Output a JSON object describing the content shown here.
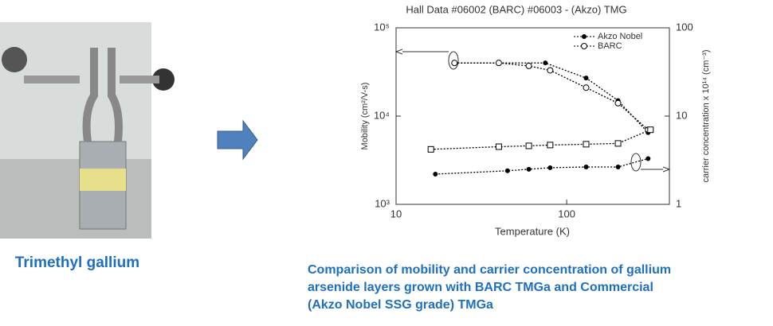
{
  "photo_caption": "Trimethyl gallium",
  "chart_caption": [
    "Comparison of mobility and carrier concentration of gallium",
    "arsenide layers grown with BARC TMGa and Commercial",
    "(Akzo Nobel SSG grade) TMGa"
  ],
  "chart_data": {
    "type": "line",
    "title": "Hall Data #06002 (BARC) #06003 - (Akzo) TMG",
    "x_label": "Temperature (K)",
    "y_label": "Mobility (cm²/V-s)",
    "y2_label": "carrier concentration x 10¹⁴ (cm⁻³)",
    "xscale": "log",
    "yscale": "log",
    "y2scale": "log",
    "xlim": [
      10,
      400
    ],
    "xticks": [
      10,
      100
    ],
    "ylim": [
      1000,
      100000
    ],
    "yticks": [
      {
        "value": 1000,
        "label": "10³"
      },
      {
        "value": 10000,
        "label": "10⁴"
      },
      {
        "value": 100000,
        "label": "10⁵"
      }
    ],
    "y2lim": [
      1,
      100
    ],
    "y2ticks": [
      1,
      10,
      100
    ],
    "legend": "upper right",
    "series": [
      {
        "name": "Akzo Nobel",
        "color": "#000000",
        "marker": "dot",
        "x": [
          22,
          40,
          75,
          130,
          200,
          300
        ],
        "values": [
          40000,
          40000,
          40000,
          27000,
          15000,
          6500
        ]
      },
      {
        "name": "BARC",
        "color": "#000000",
        "marker": "circle",
        "x": [
          22,
          40,
          60,
          80,
          130,
          200,
          300
        ],
        "values": [
          40000,
          40000,
          37000,
          33000,
          21000,
          14000,
          7000
        ]
      },
      {
        "color": "#000000",
        "marker": "square",
        "axis": "y2",
        "x": [
          16,
          40,
          60,
          80,
          130,
          200,
          310
        ],
        "values": [
          4.2,
          4.5,
          4.6,
          4.7,
          4.8,
          4.9,
          7
        ]
      },
      {
        "color": "#000000",
        "marker": "dot",
        "axis": "y2",
        "x": [
          17,
          45,
          60,
          80,
          130,
          200,
          300
        ],
        "values": [
          2.2,
          2.4,
          2.5,
          2.6,
          2.65,
          2.65,
          3.3
        ]
      }
    ]
  }
}
